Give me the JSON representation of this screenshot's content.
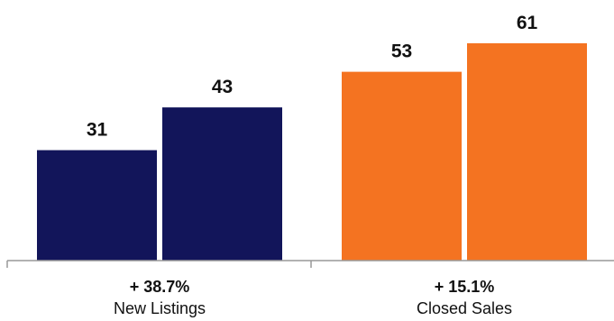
{
  "chart_data": {
    "type": "bar",
    "categories": [
      "New Listings",
      "Closed Sales"
    ],
    "changes": [
      "+ 38.7%",
      "+ 15.1%"
    ],
    "series": [
      {
        "values": [
          31,
          43
        ],
        "color": "#12155a"
      },
      {
        "values": [
          53,
          61
        ],
        "color": "#f47321"
      }
    ],
    "data_labels": true,
    "ylim": [
      0,
      70
    ],
    "grid": false,
    "legend": "none"
  }
}
